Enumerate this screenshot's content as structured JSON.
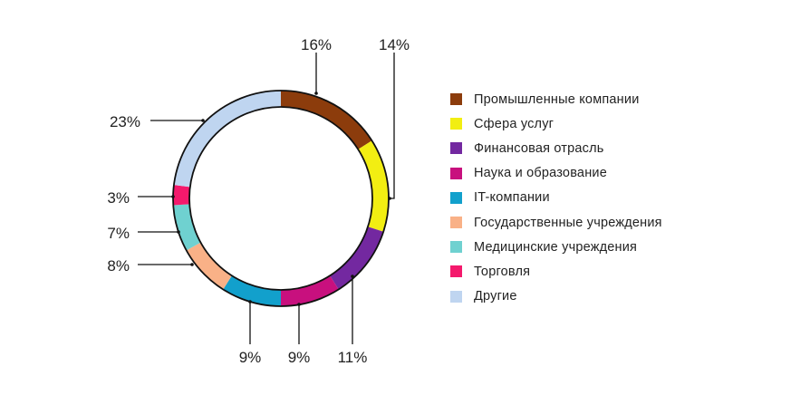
{
  "chart_data": {
    "type": "pie",
    "style": "donut",
    "slices": [
      {
        "label": "Промышленные компании",
        "value": 16,
        "value_label": "16%",
        "color": "#8c3c0c"
      },
      {
        "label": "Сфера услуг",
        "value": 14,
        "value_label": "14%",
        "color": "#f2ee12"
      },
      {
        "label": "Финансовая отрасль",
        "value": 11,
        "value_label": "11%",
        "color": "#7328a0"
      },
      {
        "label": "Наука и образование",
        "value": 9,
        "value_label": "9%",
        "color": "#c8107e"
      },
      {
        "label": "IT-компании",
        "value": 9,
        "value_label": "9%",
        "color": "#12a0cc"
      },
      {
        "label": "Государственные учреждения",
        "value": 8,
        "value_label": "8%",
        "color": "#f9b187"
      },
      {
        "label": "Медицинские учреждения",
        "value": 7,
        "value_label": "7%",
        "color": "#6fd1d0"
      },
      {
        "label": "Торговля",
        "value": 3,
        "value_label": "3%",
        "color": "#f4196c"
      },
      {
        "label": "Другие",
        "value": 23,
        "value_label": "23%",
        "color": "#bfd5f0"
      }
    ],
    "legend_position": "right"
  }
}
